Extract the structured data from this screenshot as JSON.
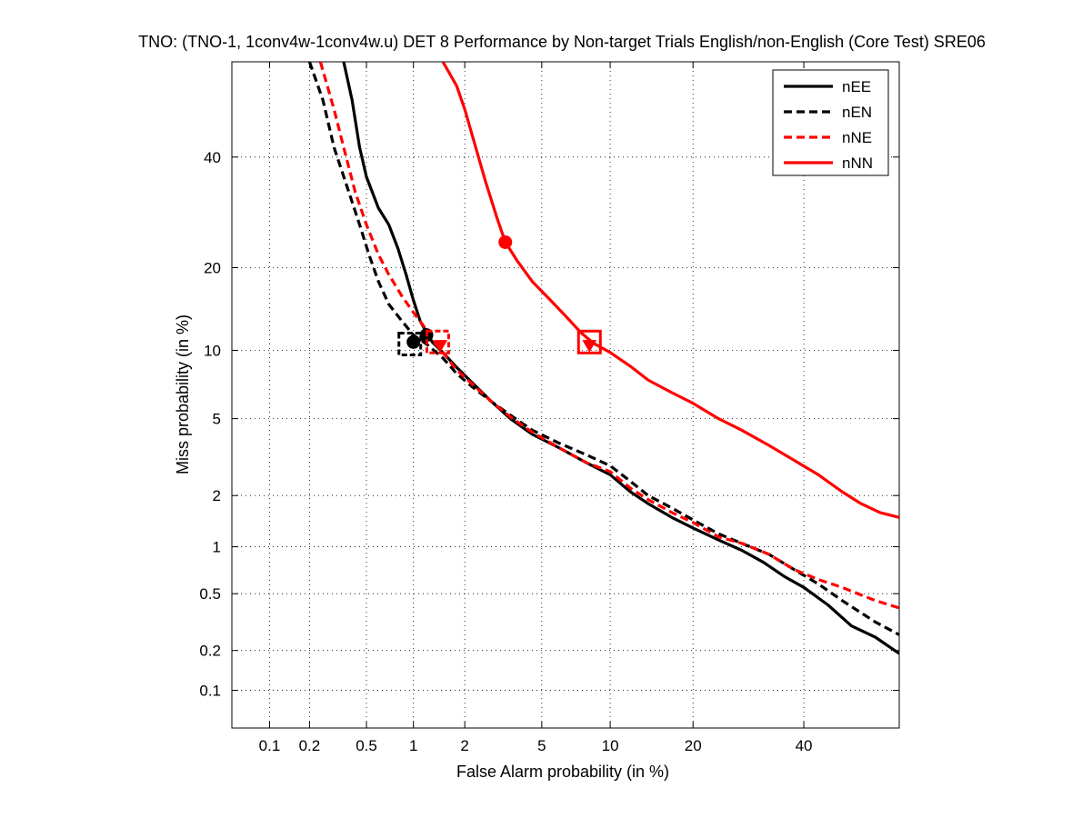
{
  "chart_data": {
    "type": "line",
    "title": "TNO: (TNO-1, 1conv4w-1conv4w.u) DET 8 Performance by Non-target Trials English/non-English (Core Test) SRE06",
    "xlabel": "False Alarm probability (in %)",
    "ylabel": "Miss probability (in %)",
    "x_scale": "probit",
    "y_scale": "probit",
    "xlim": [
      0.05,
      60
    ],
    "ylim": [
      0.05,
      60
    ],
    "x_ticks": [
      {
        "v": 0.1,
        "label": "0.1"
      },
      {
        "v": 0.2,
        "label": "0.2"
      },
      {
        "v": 0.5,
        "label": "0.5"
      },
      {
        "v": 1,
        "label": "1"
      },
      {
        "v": 2,
        "label": "2"
      },
      {
        "v": 5,
        "label": "5"
      },
      {
        "v": 10,
        "label": "10"
      },
      {
        "v": 20,
        "label": "20"
      },
      {
        "v": 40,
        "label": "40"
      }
    ],
    "y_ticks": [
      {
        "v": 0.1,
        "label": "0.1"
      },
      {
        "v": 0.2,
        "label": "0.2"
      },
      {
        "v": 0.5,
        "label": "0.5"
      },
      {
        "v": 1,
        "label": "1"
      },
      {
        "v": 2,
        "label": "2"
      },
      {
        "v": 5,
        "label": "5"
      },
      {
        "v": 10,
        "label": "10"
      },
      {
        "v": 20,
        "label": "20"
      },
      {
        "v": 40,
        "label": "40"
      }
    ],
    "grid": true,
    "legend_position": "top-right",
    "series": [
      {
        "name": "nEE",
        "color": "#000000",
        "dash": "solid",
        "points": [
          [
            0.35,
            60
          ],
          [
            0.4,
            52
          ],
          [
            0.45,
            42
          ],
          [
            0.5,
            36
          ],
          [
            0.6,
            30
          ],
          [
            0.7,
            27
          ],
          [
            0.8,
            23
          ],
          [
            0.9,
            19
          ],
          [
            1.0,
            15.5
          ],
          [
            1.1,
            13
          ],
          [
            1.2,
            11.8
          ],
          [
            1.3,
            10.8
          ],
          [
            1.5,
            9.8
          ],
          [
            1.8,
            8.5
          ],
          [
            2.2,
            7.3
          ],
          [
            2.8,
            6.0
          ],
          [
            3.5,
            5.0
          ],
          [
            4.5,
            4.2
          ],
          [
            6,
            3.6
          ],
          [
            8,
            3.0
          ],
          [
            10,
            2.6
          ],
          [
            12,
            2.1
          ],
          [
            14,
            1.8
          ],
          [
            17,
            1.5
          ],
          [
            20,
            1.3
          ],
          [
            24,
            1.1
          ],
          [
            28,
            0.95
          ],
          [
            32,
            0.8
          ],
          [
            36,
            0.65
          ],
          [
            40,
            0.55
          ],
          [
            45,
            0.42
          ],
          [
            50,
            0.3
          ],
          [
            55,
            0.25
          ],
          [
            60,
            0.19
          ]
        ]
      },
      {
        "name": "nEN",
        "color": "#000000",
        "dash": "dashed",
        "points": [
          [
            0.2,
            60
          ],
          [
            0.25,
            52
          ],
          [
            0.3,
            42
          ],
          [
            0.38,
            33
          ],
          [
            0.45,
            27
          ],
          [
            0.52,
            22
          ],
          [
            0.6,
            18
          ],
          [
            0.7,
            15
          ],
          [
            0.85,
            13
          ],
          [
            1.0,
            11.5
          ],
          [
            1.2,
            10.6
          ],
          [
            1.5,
            9.3
          ],
          [
            1.8,
            8.0
          ],
          [
            2.2,
            7.0
          ],
          [
            2.8,
            6.0
          ],
          [
            3.5,
            5.2
          ],
          [
            4.5,
            4.4
          ],
          [
            6,
            3.8
          ],
          [
            8,
            3.3
          ],
          [
            10,
            2.9
          ],
          [
            12,
            2.4
          ],
          [
            14,
            2.0
          ],
          [
            17,
            1.7
          ],
          [
            20,
            1.45
          ],
          [
            24,
            1.2
          ],
          [
            28,
            1.05
          ],
          [
            33,
            0.9
          ],
          [
            38,
            0.72
          ],
          [
            43,
            0.58
          ],
          [
            48,
            0.45
          ],
          [
            55,
            0.32
          ],
          [
            60,
            0.26
          ]
        ]
      },
      {
        "name": "nNE",
        "color": "#ff0000",
        "dash": "dashed",
        "points": [
          [
            0.24,
            60
          ],
          [
            0.3,
            50
          ],
          [
            0.35,
            42
          ],
          [
            0.42,
            33
          ],
          [
            0.5,
            27
          ],
          [
            0.6,
            22
          ],
          [
            0.7,
            19
          ],
          [
            0.85,
            16
          ],
          [
            1.0,
            14
          ],
          [
            1.15,
            12.5
          ],
          [
            1.3,
            11
          ],
          [
            1.5,
            9.8
          ],
          [
            1.8,
            8.3
          ],
          [
            2.2,
            7.2
          ],
          [
            2.8,
            6.0
          ],
          [
            3.5,
            5.1
          ],
          [
            4.5,
            4.3
          ],
          [
            6,
            3.6
          ],
          [
            8,
            3.0
          ],
          [
            10,
            2.7
          ],
          [
            12,
            2.2
          ],
          [
            14,
            1.9
          ],
          [
            17,
            1.6
          ],
          [
            20,
            1.4
          ],
          [
            24,
            1.15
          ],
          [
            28,
            1.05
          ],
          [
            33,
            0.9
          ],
          [
            38,
            0.72
          ],
          [
            43,
            0.62
          ],
          [
            48,
            0.55
          ],
          [
            55,
            0.45
          ],
          [
            60,
            0.4
          ]
        ]
      },
      {
        "name": "nNN",
        "color": "#ff0000",
        "dash": "solid",
        "points": [
          [
            1.5,
            60
          ],
          [
            1.8,
            55
          ],
          [
            2.0,
            50
          ],
          [
            2.3,
            42
          ],
          [
            2.6,
            35
          ],
          [
            3.0,
            28
          ],
          [
            3.3,
            24
          ],
          [
            3.8,
            21
          ],
          [
            4.5,
            18
          ],
          [
            5.5,
            15.5
          ],
          [
            6.5,
            13.5
          ],
          [
            7.5,
            11.8
          ],
          [
            8.5,
            10.7
          ],
          [
            10,
            9.8
          ],
          [
            12,
            8.6
          ],
          [
            14,
            7.5
          ],
          [
            17,
            6.6
          ],
          [
            20,
            5.9
          ],
          [
            24,
            5.0
          ],
          [
            28,
            4.4
          ],
          [
            33,
            3.7
          ],
          [
            38,
            3.1
          ],
          [
            43,
            2.6
          ],
          [
            48,
            2.1
          ],
          [
            52,
            1.8
          ],
          [
            56,
            1.6
          ],
          [
            60,
            1.5
          ]
        ]
      }
    ],
    "markers": [
      {
        "series": "nEE",
        "shape": "circle",
        "x": 1.0,
        "y": 10.8
      },
      {
        "series": "nEN",
        "shape": "square",
        "x": 0.95,
        "y": 10.6
      },
      {
        "series": "nEN",
        "shape": "circle",
        "x": 1.2,
        "y": 11.5
      },
      {
        "series": "nNE",
        "shape": "square",
        "x": 1.4,
        "y": 10.8
      },
      {
        "series": "nNE",
        "shape": "triangle",
        "x": 1.45,
        "y": 10.5
      },
      {
        "series": "nNN",
        "shape": "circle",
        "x": 3.3,
        "y": 24
      },
      {
        "series": "nNN",
        "shape": "square",
        "x": 8.2,
        "y": 10.8
      },
      {
        "series": "nNN",
        "shape": "triangle",
        "x": 8.2,
        "y": 10.5
      }
    ]
  }
}
